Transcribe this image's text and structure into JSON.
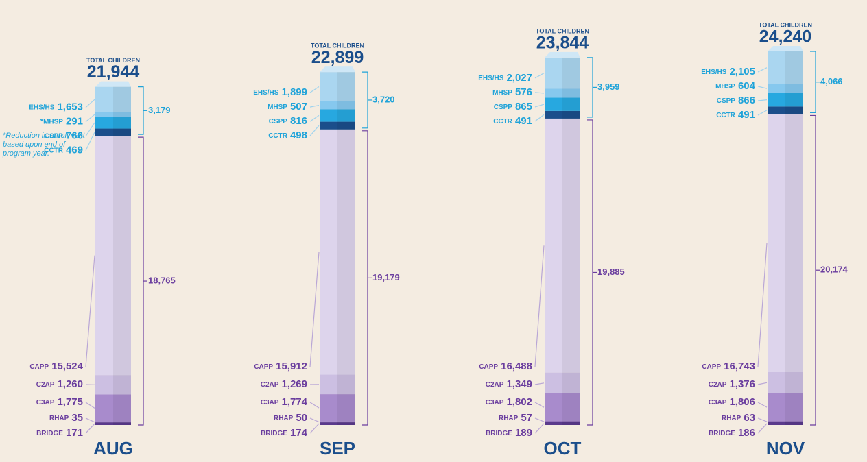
{
  "chart_data": {
    "type": "stacked_column",
    "total_label": "TOTAL CHILDREN",
    "categories": [
      "AUG",
      "SEP",
      "OCT",
      "NOV"
    ],
    "totals": [
      21944,
      22899,
      23844,
      24240
    ],
    "total_labels": [
      "21,944",
      "22,899",
      "23,844",
      "24,240"
    ],
    "series": [
      {
        "name": "EHS/HS",
        "color": "#aad6f0",
        "label_color": "#1fa3d9",
        "values": [
          1653,
          1899,
          2027,
          2105
        ],
        "value_labels": [
          "1,653",
          "1,899",
          "2,027",
          "2,105"
        ]
      },
      {
        "name": "MHSP",
        "color": "#86c8ee",
        "label_color": "#1fa3d9",
        "values": [
          291,
          507,
          576,
          604
        ]
      },
      {
        "name": "CSPP",
        "color": "#27a8e0",
        "label_color": "#1fa3d9",
        "values": [
          766,
          816,
          865,
          866
        ]
      },
      {
        "name": "CCTR",
        "color": "#1b4e8b",
        "label_color": "#1fa3d9",
        "values": [
          469,
          498,
          491,
          491
        ]
      },
      {
        "name": "CAPP",
        "color": "#ddd4ec",
        "label_color": "#6a3d9e",
        "values": [
          15524,
          15912,
          16488,
          16743
        ],
        "value_labels": [
          "15,524",
          "15,912",
          "16,488",
          "16,743"
        ]
      },
      {
        "name": "C2AP",
        "color": "#ccbfe2",
        "label_color": "#6a3d9e",
        "values": [
          1260,
          1269,
          1349,
          1376
        ],
        "value_labels": [
          "1,260",
          "1,269",
          "1,349",
          "1,376"
        ]
      },
      {
        "name": "C3AP",
        "color": "#a88bcc",
        "label_color": "#6a3d9e",
        "values": [
          1775,
          1774,
          1802,
          1806
        ],
        "value_labels": [
          "1,775",
          "1,774",
          "1,802",
          "1,806"
        ]
      },
      {
        "name": "RHAP",
        "color": "#7e5cab",
        "label_color": "#6a3d9e",
        "values": [
          35,
          50,
          57,
          63
        ]
      },
      {
        "name": "BRIDGE",
        "color": "#5a3a8c",
        "label_color": "#6a3d9e",
        "values": [
          171,
          174,
          189,
          186
        ]
      }
    ],
    "groups": [
      {
        "color": "#1fa3d9",
        "values": [
          3179,
          3720,
          3959,
          4066
        ],
        "value_labels": [
          "3,179",
          "3,720",
          "3,959",
          "4,066"
        ]
      },
      {
        "color": "#6a3d9e",
        "values": [
          18765,
          19179,
          19885,
          20174
        ],
        "value_labels": [
          "18,765",
          "19,179",
          "19,885",
          "20,174"
        ]
      }
    ],
    "note_marker": "*",
    "note_on": {
      "series": 1,
      "category": 0
    },
    "note": "Reduction in enrollment based upon end of program year."
  }
}
